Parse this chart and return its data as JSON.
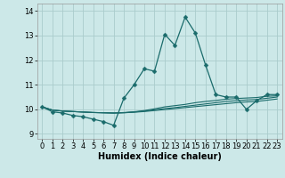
{
  "xlabel": "Humidex (Indice chaleur)",
  "bg_color": "#cce8e8",
  "line_color": "#1a6b6b",
  "grid_color": "#aacccc",
  "xlim": [
    -0.5,
    23.5
  ],
  "ylim": [
    8.8,
    14.3
  ],
  "yticks": [
    9,
    10,
    11,
    12,
    13,
    14
  ],
  "xticks": [
    0,
    1,
    2,
    3,
    4,
    5,
    6,
    7,
    8,
    9,
    10,
    11,
    12,
    13,
    14,
    15,
    16,
    17,
    18,
    19,
    20,
    21,
    22,
    23
  ],
  "series": [
    [
      10.1,
      9.9,
      9.85,
      9.75,
      9.7,
      9.6,
      9.5,
      9.35,
      10.45,
      11.0,
      11.65,
      11.55,
      13.05,
      12.6,
      13.75,
      13.1,
      11.8,
      10.6,
      10.5,
      10.5,
      10.0,
      10.35,
      10.6,
      10.6
    ],
    [
      10.1,
      9.97,
      9.93,
      9.91,
      9.89,
      9.87,
      9.86,
      9.85,
      9.87,
      9.9,
      9.95,
      10.02,
      10.1,
      10.15,
      10.2,
      10.27,
      10.32,
      10.36,
      10.41,
      10.44,
      10.46,
      10.48,
      10.53,
      10.55
    ],
    [
      10.1,
      9.97,
      9.93,
      9.91,
      9.89,
      9.87,
      9.86,
      9.85,
      9.86,
      9.89,
      9.93,
      9.98,
      10.03,
      10.07,
      10.12,
      10.17,
      10.22,
      10.27,
      10.32,
      10.35,
      10.38,
      10.4,
      10.45,
      10.5
    ],
    [
      10.1,
      9.97,
      9.93,
      9.91,
      9.89,
      9.87,
      9.86,
      9.85,
      9.86,
      9.88,
      9.91,
      9.95,
      9.99,
      10.03,
      10.07,
      10.11,
      10.15,
      10.19,
      10.23,
      10.27,
      10.3,
      10.32,
      10.37,
      10.42
    ]
  ],
  "marker": "D",
  "markersize": 2.5,
  "tick_fontsize": 6,
  "xlabel_fontsize": 7
}
